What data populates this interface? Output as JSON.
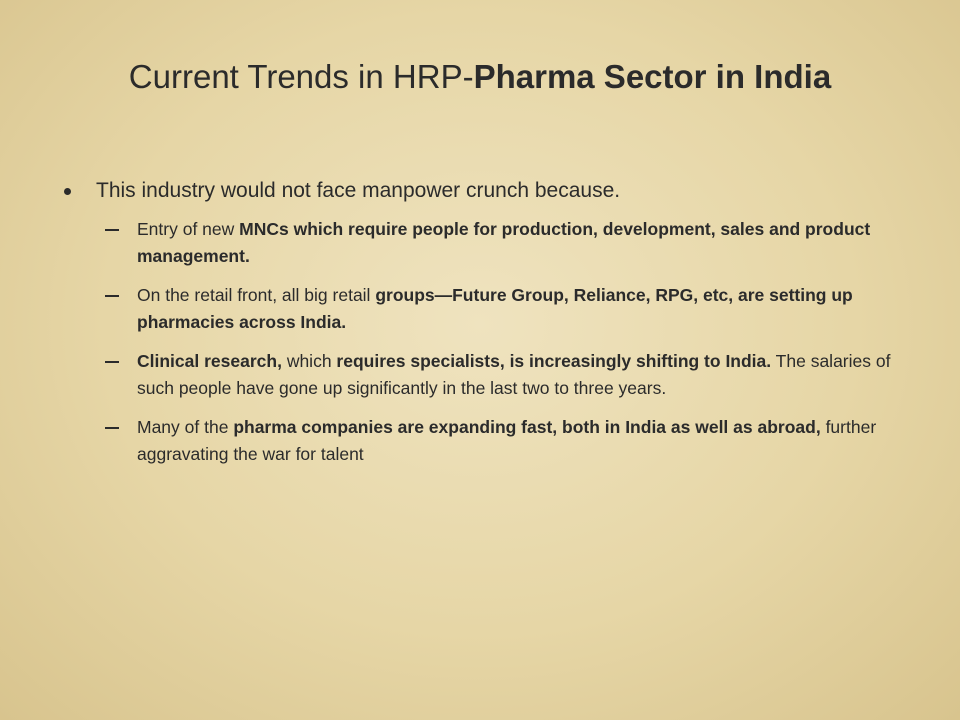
{
  "slide": {
    "title": [
      {
        "text": "Current Trends in HRP-",
        "bold": false
      },
      {
        "text": "Pharma Sector in India",
        "bold": true
      }
    ],
    "bullets": [
      {
        "runs": [
          {
            "text": "This industry would not face manpower crunch because.",
            "bold": false
          }
        ],
        "sub": [
          {
            "runs": [
              {
                "text": "Entry of new ",
                "bold": false
              },
              {
                "text": "MNCs which require people for production, development, sales and product management.",
                "bold": true
              }
            ]
          },
          {
            "runs": [
              {
                "text": "On the retail front, all big retail ",
                "bold": false
              },
              {
                "text": "groups—Future Group, Reliance, RPG, etc, are setting up pharmacies across India.",
                "bold": true
              }
            ]
          },
          {
            "runs": [
              {
                "text": "Clinical research,",
                "bold": true
              },
              {
                "text": " which ",
                "bold": false
              },
              {
                "text": "requires specialists, is increasingly shifting to India.",
                "bold": true
              },
              {
                "text": " The salaries of such people have gone up significantly in the last two to three years.",
                "bold": false
              }
            ]
          },
          {
            "runs": [
              {
                "text": "Many of the ",
                "bold": false
              },
              {
                "text": "pharma companies are expanding fast, both in India as well as abroad,",
                "bold": true
              },
              {
                "text": " further aggravating the war for talent",
                "bold": false
              }
            ]
          }
        ]
      }
    ]
  }
}
